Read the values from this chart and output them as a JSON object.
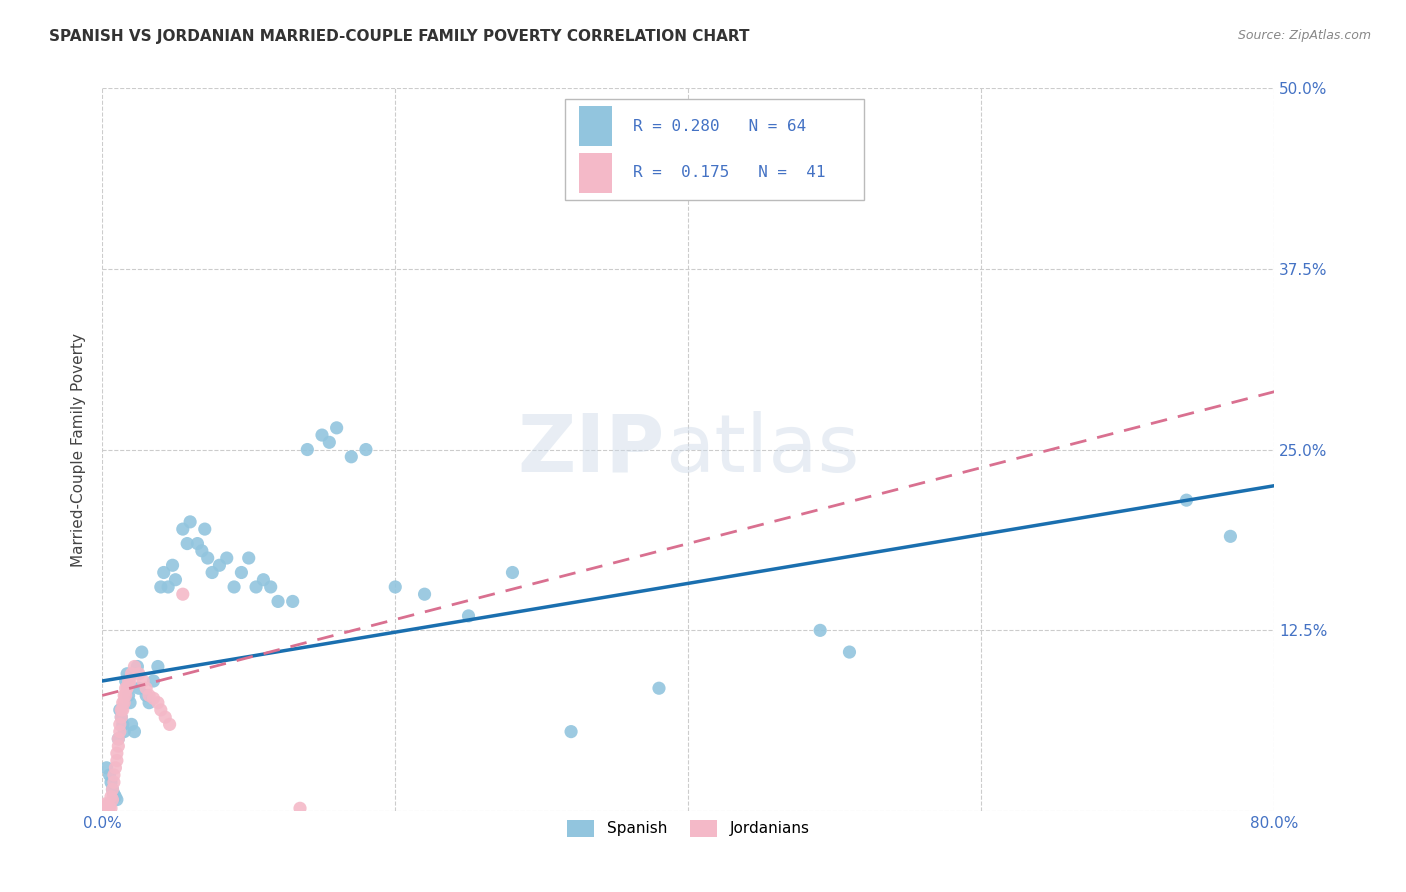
{
  "title": "SPANISH VS JORDANIAN MARRIED-COUPLE FAMILY POVERTY CORRELATION CHART",
  "source": "Source: ZipAtlas.com",
  "ylabel": "Married-Couple Family Poverty",
  "xlim": [
    0,
    0.8
  ],
  "ylim": [
    0,
    0.5
  ],
  "blue_color": "#92c5de",
  "pink_color": "#f4b9c8",
  "line_blue": "#1a6faf",
  "line_pink": "#d97090",
  "spanish_x": [
    0.003,
    0.005,
    0.006,
    0.007,
    0.008,
    0.009,
    0.01,
    0.011,
    0.012,
    0.013,
    0.014,
    0.015,
    0.016,
    0.017,
    0.018,
    0.019,
    0.02,
    0.022,
    0.024,
    0.025,
    0.027,
    0.03,
    0.032,
    0.035,
    0.038,
    0.04,
    0.042,
    0.045,
    0.048,
    0.05,
    0.055,
    0.058,
    0.06,
    0.065,
    0.068,
    0.07,
    0.072,
    0.075,
    0.08,
    0.085,
    0.09,
    0.095,
    0.1,
    0.105,
    0.11,
    0.115,
    0.12,
    0.13,
    0.14,
    0.15,
    0.155,
    0.16,
    0.17,
    0.18,
    0.2,
    0.22,
    0.25,
    0.28,
    0.32,
    0.38,
    0.49,
    0.51,
    0.74,
    0.77
  ],
  "spanish_y": [
    0.03,
    0.025,
    0.02,
    0.015,
    0.012,
    0.01,
    0.008,
    0.05,
    0.07,
    0.065,
    0.06,
    0.055,
    0.09,
    0.095,
    0.08,
    0.075,
    0.06,
    0.055,
    0.1,
    0.085,
    0.11,
    0.08,
    0.075,
    0.09,
    0.1,
    0.155,
    0.165,
    0.155,
    0.17,
    0.16,
    0.195,
    0.185,
    0.2,
    0.185,
    0.18,
    0.195,
    0.175,
    0.165,
    0.17,
    0.175,
    0.155,
    0.165,
    0.175,
    0.155,
    0.16,
    0.155,
    0.145,
    0.145,
    0.25,
    0.26,
    0.255,
    0.265,
    0.245,
    0.25,
    0.155,
    0.15,
    0.135,
    0.165,
    0.055,
    0.085,
    0.125,
    0.11,
    0.215,
    0.19
  ],
  "jordanian_x": [
    0.002,
    0.003,
    0.004,
    0.005,
    0.006,
    0.006,
    0.007,
    0.007,
    0.008,
    0.008,
    0.009,
    0.01,
    0.01,
    0.011,
    0.011,
    0.012,
    0.012,
    0.013,
    0.013,
    0.014,
    0.014,
    0.015,
    0.015,
    0.016,
    0.016,
    0.017,
    0.018,
    0.019,
    0.02,
    0.022,
    0.025,
    0.028,
    0.03,
    0.032,
    0.035,
    0.038,
    0.04,
    0.043,
    0.046,
    0.055,
    0.135
  ],
  "jordanian_y": [
    0.005,
    0.004,
    0.003,
    0.003,
    0.002,
    0.01,
    0.008,
    0.015,
    0.02,
    0.025,
    0.03,
    0.035,
    0.04,
    0.045,
    0.05,
    0.055,
    0.06,
    0.065,
    0.07,
    0.07,
    0.075,
    0.075,
    0.08,
    0.08,
    0.085,
    0.085,
    0.09,
    0.09,
    0.095,
    0.1,
    0.095,
    0.09,
    0.085,
    0.08,
    0.078,
    0.075,
    0.07,
    0.065,
    0.06,
    0.15,
    0.002
  ]
}
